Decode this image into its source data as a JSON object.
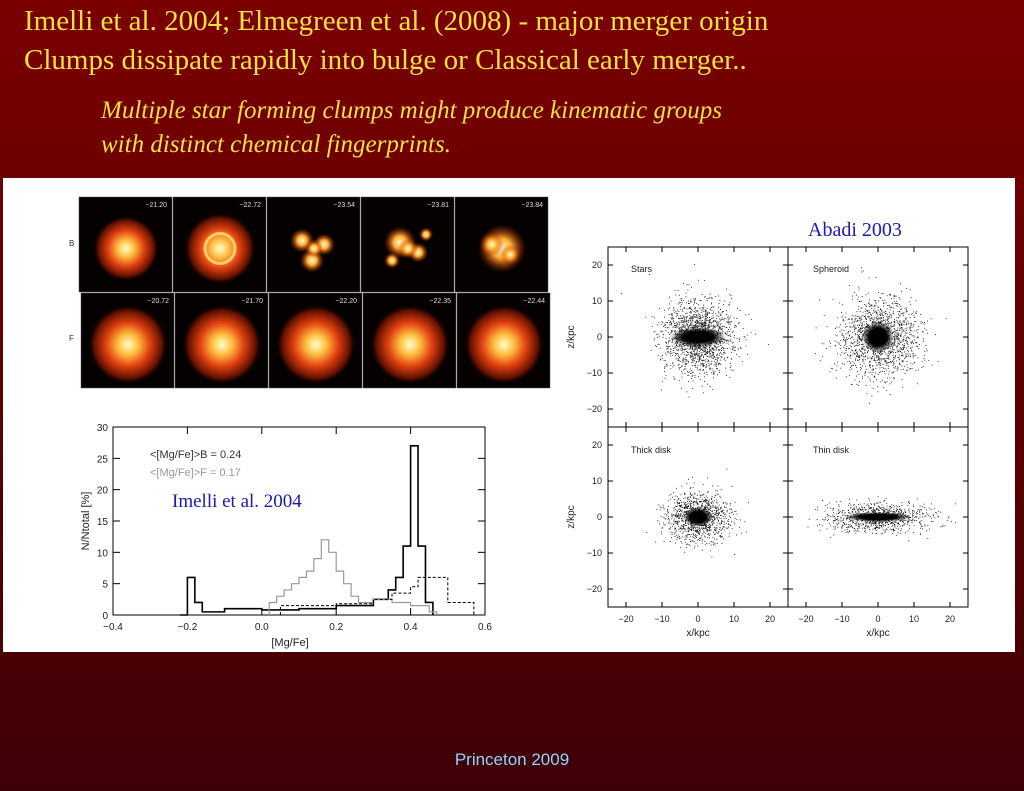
{
  "slide": {
    "title_line1": "Imelli et al. 2004; Elmegreen et al. (2008) - major merger origin",
    "title_line2": "Clumps dissipate rapidly into bulge  or Classical early merger..",
    "subtitle_line1": "Multiple star forming clumps might produce kinematic groups",
    "subtitle_line2": "with distinct chemical fingerprints.",
    "footer": "Princeton 2009"
  },
  "galaxy_grid": {
    "rows": [
      {
        "label": "B",
        "values": [
          "−21.20",
          "−22.72",
          "−23.54",
          "−23.81",
          "−23.84"
        ]
      },
      {
        "label": "F",
        "values": [
          "−20.72",
          "−21.70",
          "−22.20",
          "−22.35",
          "−22.44"
        ]
      }
    ]
  },
  "histogram": {
    "credit": "Imelli et al. 2004",
    "legend_b": "<[Mg/Fe]>B = 0.24",
    "legend_f": "<[Mg/Fe]>F = 0.17",
    "xlabel": "[Mg/Fe]",
    "ylabel": "N/Ntotal [%]",
    "xticks": [
      "−0.4",
      "−0.2",
      "0.0",
      "0.2",
      "0.4",
      "0.6"
    ],
    "yticks": [
      "0",
      "5",
      "10",
      "15",
      "20",
      "25",
      "30"
    ]
  },
  "scatter": {
    "credit": "Abadi 2003",
    "panels": [
      "Stars",
      "Spheroid",
      "Thick disk",
      "Thin disk"
    ],
    "xlabel": "x/kpc",
    "ylabel": "z/kpc",
    "ticks": [
      "−20",
      "−10",
      "0",
      "10",
      "20"
    ]
  },
  "colors": {
    "title": "#f0e040",
    "footer": "#8fd4ff",
    "credit": "#1a1ab0"
  },
  "chart_data": [
    {
      "type": "line",
      "xlabel": "[Mg/Fe]",
      "ylabel": "N/Ntotal [%]",
      "xlim": [
        -0.4,
        0.6
      ],
      "ylim": [
        0,
        30
      ],
      "series": [
        {
          "name": "<[Mg/Fe]>B = 0.24",
          "style": "solid black step",
          "x": [
            -0.22,
            -0.2,
            -0.18,
            -0.16,
            -0.1,
            0.0,
            0.1,
            0.2,
            0.3,
            0.34,
            0.36,
            0.38,
            0.4,
            0.42,
            0.44
          ],
          "y": [
            0,
            6,
            2,
            0.5,
            1,
            0.8,
            1,
            1.5,
            2.5,
            4,
            6,
            11,
            27,
            11,
            2
          ]
        },
        {
          "name": "<[Mg/Fe]>F = 0.17",
          "style": "solid gray step",
          "x": [
            0.02,
            0.04,
            0.06,
            0.08,
            0.1,
            0.12,
            0.14,
            0.16,
            0.18,
            0.2,
            0.22,
            0.24,
            0.26,
            0.3,
            0.35,
            0.4,
            0.45
          ],
          "y": [
            2,
            3,
            4,
            5,
            6,
            7,
            9,
            12,
            10,
            7,
            5,
            3,
            2,
            2.5,
            2,
            1.5,
            0.5
          ]
        },
        {
          "name": "",
          "style": "dashed black step",
          "x": [
            0.05,
            0.1,
            0.2,
            0.3,
            0.35,
            0.4,
            0.42,
            0.45,
            0.5,
            0.55
          ],
          "y": [
            1.5,
            1.5,
            1.8,
            2.5,
            3.5,
            4.5,
            6,
            6,
            2,
            2
          ]
        }
      ]
    },
    {
      "type": "scatter",
      "panels": [
        "Stars",
        "Spheroid",
        "Thick disk",
        "Thin disk"
      ],
      "xlabel": "x/kpc",
      "ylabel": "z/kpc",
      "xlim": [
        -25,
        25
      ],
      "ylim": [
        -25,
        25
      ]
    }
  ]
}
